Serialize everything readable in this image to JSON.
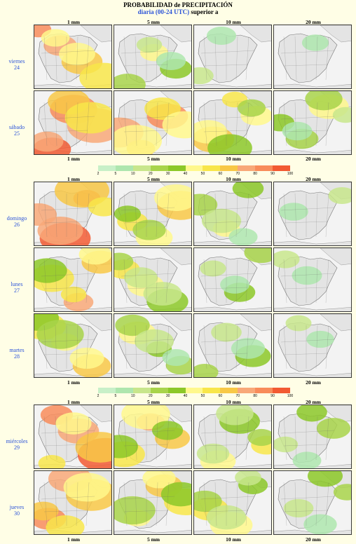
{
  "title": "PROBABILIDAD de PRECIPITACIÓN",
  "subtitle_colored": "diaria (00-24 UTC)",
  "subtitle_plain": " superior a",
  "thresholds": [
    "1 mm",
    "5 mm",
    "10 mm",
    "20 mm"
  ],
  "days": [
    {
      "name": "viernes",
      "num": "24"
    },
    {
      "name": "sábado",
      "num": "25"
    },
    {
      "name": "domingo",
      "num": "26"
    },
    {
      "name": "lunes",
      "num": "27"
    },
    {
      "name": "martes",
      "num": "28"
    },
    {
      "name": "miércoles",
      "num": "29"
    },
    {
      "name": "jueves",
      "num": "30"
    }
  ],
  "legend": {
    "ticks": [
      "2",
      "5",
      "10",
      "20",
      "30",
      "40",
      "50",
      "60",
      "70",
      "80",
      "90",
      "100"
    ],
    "colors": [
      "#c8f0c8",
      "#aee6ae",
      "#c8e68c",
      "#a8d44a",
      "#8cc828",
      "#fff88c",
      "#f8e64a",
      "#f8c846",
      "#f8a878",
      "#f88c5a",
      "#f25a32"
    ]
  },
  "colors": {
    "background": "#fffee6",
    "day_label": "#2a52d8",
    "land": "#e4e4e4",
    "sea": "#f3f3f3"
  }
}
